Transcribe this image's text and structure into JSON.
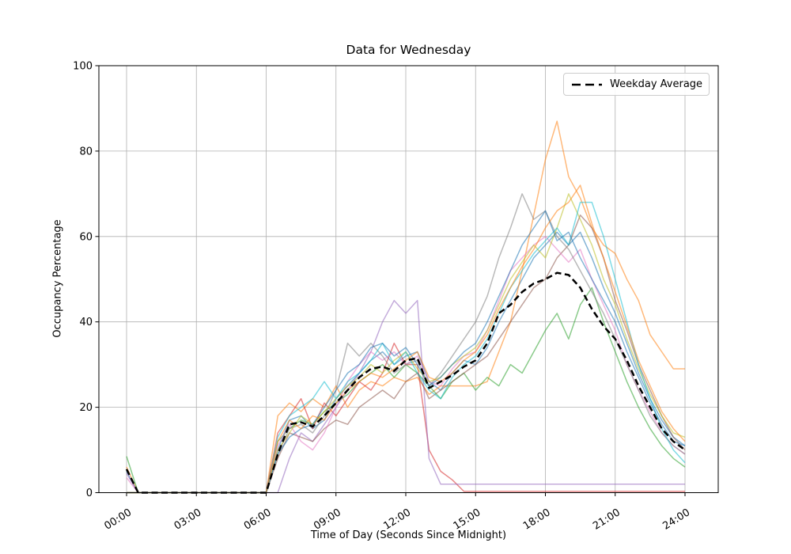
{
  "chart_data": {
    "type": "line",
    "title": "Data for Wednesday",
    "xlabel": "Time of Day (Seconds Since Midnight)",
    "ylabel": "Occupancy Percentage",
    "ylim": [
      0,
      100
    ],
    "y_ticks": [
      0,
      20,
      40,
      60,
      80,
      100
    ],
    "x_tick_hours": [
      0,
      3,
      6,
      9,
      12,
      15,
      18,
      21,
      24
    ],
    "x_tick_labels": [
      "00:00",
      "03:00",
      "06:00",
      "09:00",
      "12:00",
      "15:00",
      "18:00",
      "21:00",
      "24:00"
    ],
    "grid": true,
    "x_start_hour": 0,
    "x_step_hours": 0.5,
    "colors": {
      "grid": "#b0b0b0",
      "axis": "#000000",
      "background": "#ffffff"
    },
    "line_opacity": 0.55,
    "line_width": 1.5,
    "legend": {
      "position": "upper right",
      "entries": [
        {
          "label": "Weekday Average",
          "color": "#000000",
          "style": "dashed"
        }
      ]
    },
    "series": [
      {
        "name": "series-1",
        "color": "#1f77b4",
        "values": [
          5,
          0,
          0,
          0,
          0,
          0,
          0,
          0,
          0,
          0,
          0,
          0,
          0,
          10,
          17,
          18,
          15,
          17,
          22,
          25,
          28,
          31,
          33,
          30,
          32,
          33,
          26,
          24,
          28,
          31,
          30,
          34,
          40,
          45,
          50,
          55,
          58,
          61,
          58,
          61,
          55,
          48,
          42,
          35,
          28,
          22,
          17,
          13,
          11
        ]
      },
      {
        "name": "series-2",
        "color": "#ff7f0e",
        "values": [
          6,
          0,
          0,
          0,
          0,
          0,
          0,
          0,
          0,
          0,
          0,
          0,
          0,
          18,
          21,
          19,
          22,
          20,
          25,
          20,
          24,
          26,
          25,
          27,
          26,
          27,
          23,
          25,
          25,
          25,
          25,
          26,
          33,
          40,
          52,
          65,
          78,
          87,
          74,
          69,
          62,
          58,
          56,
          50,
          45,
          37,
          33,
          29,
          29
        ]
      },
      {
        "name": "series-3",
        "color": "#2ca02c",
        "values": [
          8.5,
          0,
          0,
          0,
          0,
          0,
          0,
          0,
          0,
          0,
          0,
          0,
          0,
          12,
          15,
          17,
          16,
          19,
          21,
          23,
          26,
          28,
          30,
          27,
          30,
          28,
          25,
          22,
          26,
          28,
          24,
          27,
          25,
          30,
          28,
          33,
          38,
          42,
          36,
          44,
          48,
          40,
          33,
          26,
          20,
          15,
          11,
          8,
          6
        ]
      },
      {
        "name": "series-4",
        "color": "#d62728",
        "values": [
          0,
          0,
          0,
          0,
          0,
          0,
          0,
          0,
          0,
          0,
          0,
          0,
          0,
          14,
          18,
          22,
          15,
          21,
          18,
          22,
          26,
          24,
          28,
          35,
          30,
          30,
          10,
          5,
          3,
          0.3,
          0.3,
          0.3,
          0.3,
          0.3,
          0.3,
          0.3,
          0.3,
          0.3,
          0.3,
          0.3,
          0.3,
          0.3,
          0.3,
          0.3,
          0.3,
          0.3,
          0.3,
          0.3,
          0.3
        ]
      },
      {
        "name": "series-5",
        "color": "#9467bd",
        "values": [
          4.5,
          0,
          0,
          0,
          0,
          0,
          0,
          0,
          0,
          0,
          0,
          0,
          0,
          0,
          8,
          14,
          12,
          16,
          20,
          24,
          28,
          33,
          40,
          45,
          42,
          45,
          8,
          2,
          2,
          2,
          2,
          2,
          2,
          2,
          2,
          2,
          2,
          2,
          2,
          2,
          2,
          2,
          2,
          2,
          2,
          2,
          2,
          2,
          2
        ]
      },
      {
        "name": "series-6",
        "color": "#8c564b",
        "values": [
          0,
          0,
          0,
          0,
          0,
          0,
          0,
          0,
          0,
          0,
          0,
          0,
          0,
          8,
          14,
          13,
          12,
          15,
          17,
          16,
          20,
          22,
          24,
          22,
          26,
          28,
          22,
          24,
          26,
          28,
          30,
          32,
          36,
          40,
          44,
          48,
          50,
          55,
          58,
          65,
          62,
          55,
          45,
          38,
          30,
          24,
          18,
          13,
          10
        ]
      },
      {
        "name": "series-7",
        "color": "#e377c2",
        "values": [
          3.5,
          0,
          0,
          0,
          0,
          0,
          0,
          0,
          0,
          0,
          0,
          0,
          0,
          11,
          16,
          12,
          10,
          14,
          20,
          26,
          30,
          33,
          31,
          33,
          30,
          32,
          26,
          25,
          29,
          32,
          33,
          38,
          45,
          52,
          55,
          58,
          60,
          57,
          54,
          57,
          50,
          44,
          38,
          30,
          24,
          19,
          14,
          11,
          9
        ]
      },
      {
        "name": "series-8",
        "color": "#7f7f7f",
        "values": [
          0,
          0,
          0,
          0,
          0,
          0,
          0,
          0,
          0,
          0,
          0,
          0,
          0,
          9,
          15,
          16,
          14,
          18,
          24,
          35,
          32,
          35,
          32,
          28,
          30,
          31,
          25,
          28,
          32,
          36,
          40,
          46,
          55,
          62,
          70,
          64,
          66,
          60,
          57,
          52,
          47,
          42,
          36,
          30,
          24,
          18,
          14,
          11,
          9
        ]
      },
      {
        "name": "series-9",
        "color": "#bcbd22",
        "values": [
          0,
          0,
          0,
          0,
          0,
          0,
          0,
          0,
          0,
          0,
          0,
          0,
          0,
          10,
          14,
          18,
          16,
          19,
          22,
          25,
          27,
          30,
          28,
          31,
          33,
          29,
          26,
          27,
          30,
          32,
          34,
          38,
          44,
          50,
          54,
          58,
          55,
          62,
          70,
          64,
          58,
          50,
          44,
          36,
          29,
          23,
          18,
          14,
          13
        ]
      },
      {
        "name": "series-10",
        "color": "#17becf",
        "values": [
          0,
          0,
          0,
          0,
          0,
          0,
          0,
          0,
          0,
          0,
          0,
          0,
          0,
          13,
          18,
          20,
          22,
          26,
          22,
          26,
          28,
          31,
          35,
          30,
          33,
          28,
          24,
          22,
          27,
          30,
          32,
          36,
          42,
          48,
          52,
          56,
          59,
          62,
          58,
          68,
          68,
          60,
          50,
          40,
          30,
          22,
          15,
          10,
          7
        ]
      },
      {
        "name": "series-11",
        "color": "#1f77b4",
        "values": [
          0,
          0,
          0,
          0,
          0,
          0,
          0,
          0,
          0,
          0,
          0,
          0,
          0,
          9,
          13,
          15,
          16,
          20,
          24,
          28,
          30,
          34,
          35,
          32,
          34,
          30,
          25,
          27,
          30,
          33,
          35,
          40,
          46,
          52,
          58,
          62,
          66,
          59,
          61,
          55,
          50,
          45,
          40,
          33,
          27,
          21,
          16,
          12,
          11
        ]
      },
      {
        "name": "series-12",
        "color": "#ff7f0e",
        "values": [
          0,
          0,
          0,
          0,
          0,
          0,
          0,
          0,
          0,
          0,
          0,
          0,
          0,
          12,
          17,
          15,
          18,
          17,
          21,
          24,
          26,
          28,
          27,
          29,
          31,
          33,
          27,
          26,
          28,
          31,
          33,
          37,
          43,
          48,
          53,
          57,
          62,
          66,
          68,
          72,
          63,
          55,
          47,
          39,
          31,
          25,
          19,
          15,
          12
        ]
      }
    ],
    "average": {
      "name": "weekday-average",
      "label": "Weekday Average",
      "color": "#000000",
      "style": "dashed",
      "line_width": 2.5,
      "values": [
        5.5,
        0,
        0,
        0,
        0,
        0,
        0,
        0,
        0,
        0,
        0,
        0,
        0,
        9,
        16,
        16.5,
        15.5,
        18,
        21,
        24,
        27,
        29,
        29.5,
        28.5,
        31,
        31.5,
        24.5,
        26,
        27.5,
        29.5,
        31,
        35,
        42,
        44,
        47,
        49,
        50,
        51.5,
        51,
        48,
        43,
        39,
        36,
        31,
        25,
        20,
        15,
        12,
        10
      ]
    }
  }
}
